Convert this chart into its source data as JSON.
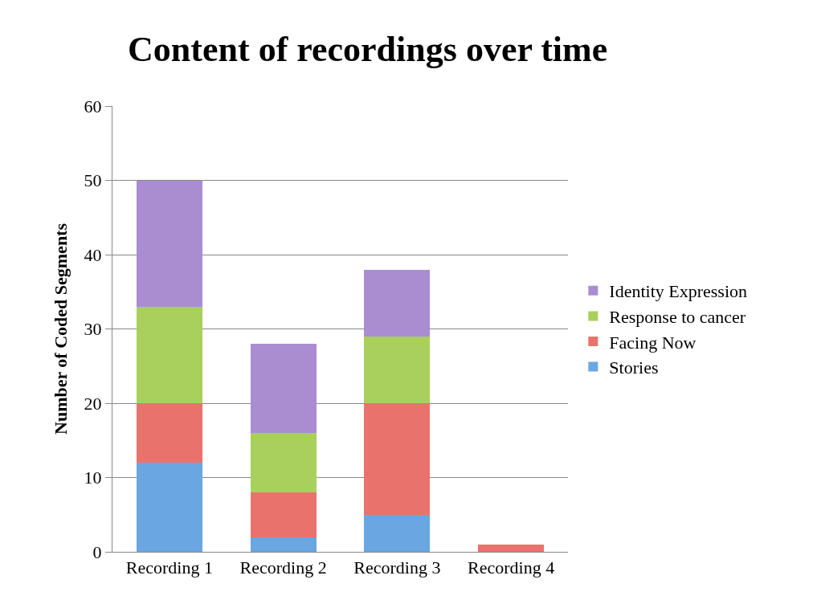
{
  "chart_data": {
    "type": "bar",
    "title": "Content of recordings over time",
    "ylabel": "Number of Coded Segments",
    "categories": [
      "Recording 1",
      "Recording 2",
      "Recording 3",
      "Recording 4"
    ],
    "series": [
      {
        "name": "Stories",
        "color": "#6aa6e2",
        "values": [
          12,
          2,
          5,
          0
        ]
      },
      {
        "name": "Facing Now",
        "color": "#ea726c",
        "values": [
          8,
          6,
          15,
          1
        ]
      },
      {
        "name": "Response to cancer",
        "color": "#a9cf5c",
        "values": [
          13,
          8,
          9,
          0
        ]
      },
      {
        "name": "Identity Expression",
        "color": "#aa8dd0",
        "values": [
          17,
          12,
          9,
          0
        ]
      }
    ],
    "stacked": true,
    "ylim": [
      0,
      60
    ],
    "yticks": [
      0,
      10,
      20,
      30,
      40,
      50,
      60
    ],
    "grid": "y",
    "legend": "right"
  }
}
